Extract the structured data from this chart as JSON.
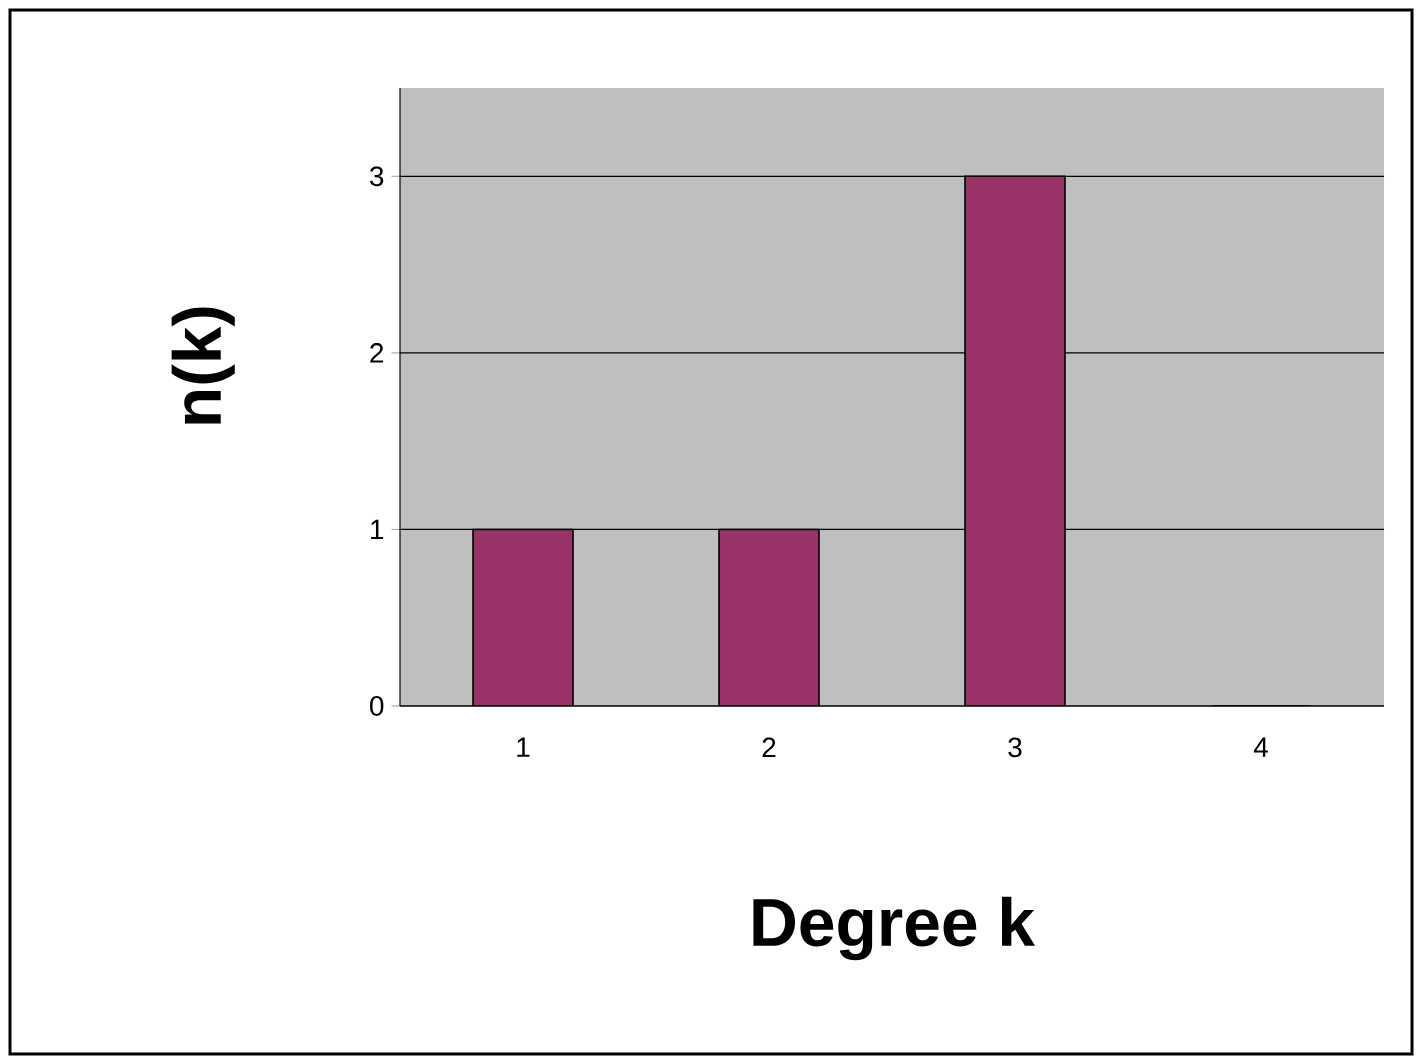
{
  "chart_data": {
    "type": "bar",
    "xlabel": "Degree k",
    "ylabel": "n(k)",
    "categories": [
      "1",
      "2",
      "3",
      "4"
    ],
    "values": [
      1,
      1,
      3,
      0
    ],
    "color": "#993366",
    "ylim": [
      0,
      3.5
    ],
    "yticks": [
      0,
      1,
      2,
      3
    ],
    "grid": "y"
  }
}
